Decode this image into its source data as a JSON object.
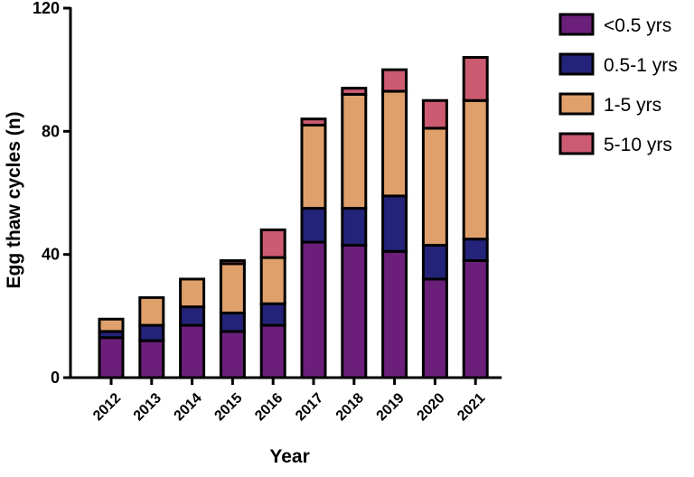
{
  "chart_data": {
    "type": "bar",
    "stacked": true,
    "categories": [
      "2012",
      "2013",
      "2014",
      "2015",
      "2016",
      "2017",
      "2018",
      "2019",
      "2020",
      "2021"
    ],
    "series": [
      {
        "name": "<0.5 yrs",
        "color": "#6b1f7a",
        "values": [
          13,
          12,
          17,
          15,
          17,
          44,
          43,
          41,
          32,
          38
        ]
      },
      {
        "name": "0.5-1 yrs",
        "color": "#24237a",
        "values": [
          2,
          5,
          6,
          6,
          7,
          11,
          12,
          18,
          11,
          7
        ]
      },
      {
        "name": "1-5 yrs",
        "color": "#e0a06b",
        "values": [
          4,
          9,
          9,
          16,
          15,
          27,
          37,
          34,
          38,
          45
        ]
      },
      {
        "name": "5-10 yrs",
        "color": "#cc5a70",
        "values": [
          0,
          0,
          0,
          1,
          9,
          2,
          2,
          7,
          9,
          14
        ]
      }
    ],
    "title": "",
    "xlabel": "Year",
    "ylabel": "Egg thaw cycles (n)",
    "ylim": [
      0,
      120
    ],
    "yticks": [
      "0",
      "40",
      "80",
      "120"
    ],
    "legend_position": "top-right",
    "grid": false
  }
}
